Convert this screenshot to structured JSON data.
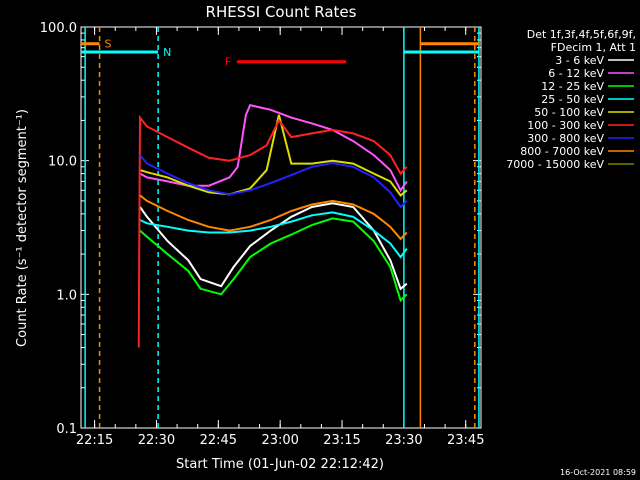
{
  "chart_data": {
    "type": "line",
    "title": "RHESSI Count Rates",
    "xlabel": "Start Time (01-Jun-02 22:12:42)",
    "ylabel": "Count Rate (s⁻¹ detector segment⁻¹)",
    "x_unit": "minutes after 22:12:42 UT",
    "xlim": [
      -1.0,
      96.0
    ],
    "ylim": [
      0.1,
      100.0
    ],
    "y_scale": "log",
    "x_ticks": [
      {
        "value": 2.3,
        "label": "22:15"
      },
      {
        "value": 17.3,
        "label": "22:30"
      },
      {
        "value": 32.3,
        "label": "22:45"
      },
      {
        "value": 47.3,
        "label": "23:00"
      },
      {
        "value": 62.3,
        "label": "23:15"
      },
      {
        "value": 77.3,
        "label": "23:30"
      },
      {
        "value": 92.3,
        "label": "23:45"
      }
    ],
    "y_ticks": [
      {
        "value": 0.1,
        "label": "0.1"
      },
      {
        "value": 1.0,
        "label": "1.0"
      },
      {
        "value": 10.0,
        "label": "10.0"
      },
      {
        "value": 100.0,
        "label": "100.0"
      }
    ],
    "legend_title": [
      "Det 1f,3f,4f,5f,6f,9f,",
      "FDecim 1, Att 1"
    ],
    "legend_position": "right",
    "series": [
      {
        "name": "3 - 6 keV",
        "color": "#ffffff",
        "x": [
          13.3,
          15,
          20,
          25,
          28,
          33,
          36,
          40,
          45,
          50,
          55,
          60,
          65,
          70,
          74,
          76.5,
          78
        ],
        "y": [
          4.5,
          3.8,
          2.5,
          1.8,
          1.3,
          1.15,
          1.6,
          2.3,
          3.0,
          3.8,
          4.5,
          4.8,
          4.5,
          3.0,
          1.8,
          1.1,
          1.2
        ]
      },
      {
        "name": "6 - 12 keV",
        "color": "#ff55ff",
        "x": [
          13.3,
          15,
          20,
          25,
          30,
          35,
          37,
          39,
          40,
          45,
          50,
          55,
          60,
          65,
          70,
          74,
          76.5,
          78
        ],
        "y": [
          8.0,
          7.5,
          7.0,
          6.5,
          6.5,
          7.5,
          9.0,
          22.0,
          26.0,
          24.0,
          21.0,
          19.0,
          17.0,
          14.0,
          11.0,
          8.5,
          6.0,
          7.0
        ]
      },
      {
        "name": "12 - 25 keV",
        "color": "#00ff00",
        "x": [
          13.3,
          15,
          20,
          25,
          28,
          33,
          36,
          40,
          45,
          50,
          55,
          60,
          65,
          70,
          74,
          76.5,
          78
        ],
        "y": [
          3.0,
          2.7,
          2.0,
          1.5,
          1.1,
          1.0,
          1.3,
          1.9,
          2.4,
          2.8,
          3.3,
          3.7,
          3.5,
          2.5,
          1.6,
          0.9,
          1.0
        ]
      },
      {
        "name": "25 - 50 keV",
        "color": "#00ffff",
        "x": [
          13.3,
          15,
          20,
          25,
          30,
          35,
          40,
          45,
          50,
          55,
          60,
          65,
          70,
          74,
          76.5,
          78
        ],
        "y": [
          3.6,
          3.4,
          3.2,
          3.0,
          2.9,
          2.9,
          3.0,
          3.2,
          3.5,
          3.9,
          4.1,
          3.8,
          3.0,
          2.4,
          1.9,
          2.2
        ]
      },
      {
        "name": "50 - 100 keV",
        "color": "#dddd00",
        "x": [
          13.3,
          15,
          20,
          25,
          30,
          35,
          40,
          44,
          47,
          50,
          55,
          60,
          65,
          70,
          74,
          76.5,
          78
        ],
        "y": [
          8.5,
          8.2,
          7.5,
          6.5,
          5.8,
          5.6,
          6.2,
          8.5,
          22.0,
          9.5,
          9.5,
          10.0,
          9.5,
          8.0,
          7.0,
          5.5,
          6.0
        ]
      },
      {
        "name": "100 - 300 keV",
        "color": "#ff2222",
        "x": [
          13.0,
          13.3,
          15,
          20,
          25,
          30,
          35,
          40,
          44,
          47,
          50,
          55,
          60,
          65,
          70,
          74,
          76.5,
          78
        ],
        "y": [
          0.4,
          21.0,
          18.0,
          15.0,
          12.5,
          10.5,
          10.0,
          11.0,
          13.0,
          20.0,
          15.0,
          16.0,
          17.0,
          16.0,
          14.0,
          11.0,
          8.0,
          9.0
        ]
      },
      {
        "name": "300 - 800 keV",
        "color": "#2222ff",
        "x": [
          13.3,
          15,
          20,
          25,
          30,
          35,
          40,
          45,
          50,
          55,
          60,
          65,
          70,
          74,
          76.5,
          78
        ],
        "y": [
          11.0,
          9.5,
          8.0,
          6.8,
          6.0,
          5.6,
          6.0,
          6.8,
          7.8,
          9.0,
          9.6,
          9.0,
          7.5,
          5.8,
          4.5,
          5.0
        ]
      },
      {
        "name": "800 - 7000 keV",
        "color": "#ff8800",
        "x": [
          13.3,
          15,
          20,
          25,
          30,
          35,
          40,
          45,
          50,
          55,
          60,
          65,
          70,
          74,
          76.5,
          78
        ],
        "y": [
          5.5,
          5.0,
          4.2,
          3.6,
          3.2,
          3.0,
          3.2,
          3.6,
          4.2,
          4.7,
          5.0,
          4.7,
          4.0,
          3.2,
          2.6,
          2.9
        ]
      },
      {
        "name": "7000 - 15000 keV",
        "color": "#808000",
        "x": [],
        "y": []
      }
    ],
    "annotations": [
      {
        "label": "S",
        "color": "#ff8800",
        "x_range": [
          -1.0,
          3.5
        ],
        "y": 75.0
      },
      {
        "label": "N",
        "color": "#00ffff",
        "x_range": [
          -1.0,
          17.7
        ],
        "y": 65.0
      },
      {
        "label": "F",
        "color": "#ff0000",
        "x_range": [
          36.8,
          63.3
        ],
        "y": 55.0
      },
      {
        "color": "#ff8800",
        "x_range": [
          81.3,
          95.5
        ],
        "y": 75.0
      },
      {
        "color": "#00ffff",
        "x_range": [
          77.3,
          95.5
        ],
        "y": 65.0
      }
    ],
    "vertical_markers": [
      {
        "x": 0.0,
        "color": "#00ffff",
        "style": "solid"
      },
      {
        "x": 3.5,
        "color": "#ff8800",
        "style": "dashed"
      },
      {
        "x": 17.7,
        "color": "#00ffff",
        "style": "dashed"
      },
      {
        "x": 77.3,
        "color": "#00ffff",
        "style": "solid"
      },
      {
        "x": 81.3,
        "color": "#ff8800",
        "style": "solid"
      },
      {
        "x": 94.5,
        "color": "#ff8800",
        "style": "dashed"
      },
      {
        "x": 95.5,
        "color": "#00ffff",
        "style": "solid"
      }
    ],
    "footer_date": "16-Oct-2021 08:59"
  }
}
